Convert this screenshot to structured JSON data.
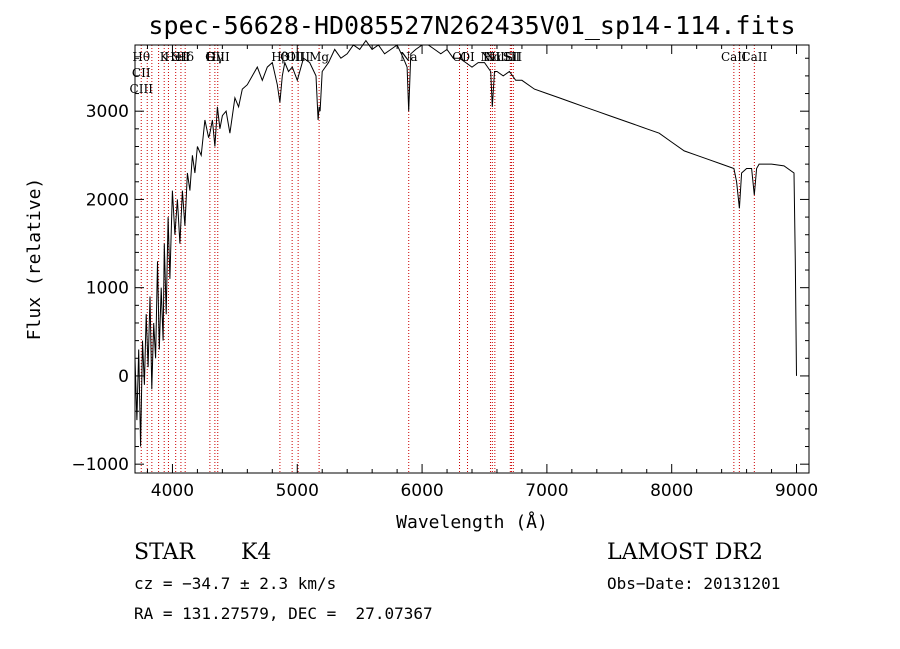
{
  "chart_data": {
    "type": "line",
    "title": "spec-56628-HD085527N262435V01_sp14-114.fits",
    "xlabel": "Wavelength (Å)",
    "ylabel": "Flux (relative)",
    "xlim": [
      3700,
      9100
    ],
    "ylim": [
      -1100,
      3750
    ],
    "xticks": [
      4000,
      5000,
      6000,
      7000,
      8000,
      9000
    ],
    "yticks": [
      -1000,
      0,
      1000,
      2000,
      3000
    ],
    "xtick_labels": [
      "4000",
      "5000",
      "6000",
      "7000",
      "8000",
      "9000"
    ],
    "ytick_labels": [
      "−1000",
      "0",
      "1000",
      "2000",
      "3000"
    ],
    "grid": false,
    "series": [
      {
        "x": [
          3700,
          3715,
          3730,
          3745,
          3760,
          3775,
          3790,
          3805,
          3820,
          3835,
          3850,
          3865,
          3880,
          3895,
          3910,
          3925,
          3935,
          3950,
          3965,
          3980,
          4000,
          4020,
          4040,
          4060,
          4080,
          4100,
          4120,
          4140,
          4160,
          4180,
          4200,
          4230,
          4260,
          4290,
          4300,
          4320,
          4340,
          4360,
          4380,
          4400,
          4430,
          4460,
          4500,
          4530,
          4560,
          4600,
          4640,
          4680,
          4720,
          4760,
          4800,
          4840,
          4861,
          4880,
          4900,
          4930,
          4960,
          5000,
          5050,
          5100,
          5150,
          5167,
          5175,
          5183,
          5200,
          5250,
          5300,
          5350,
          5400,
          5450,
          5500,
          5550,
          5600,
          5650,
          5700,
          5750,
          5800,
          5850,
          5880,
          5893,
          5910,
          5950,
          6000,
          6050,
          6100,
          6150,
          6200,
          6250,
          6300,
          6350,
          6400,
          6450,
          6500,
          6550,
          6563,
          6580,
          6600,
          6650,
          6700,
          6750,
          6800,
          6900,
          7000,
          7100,
          7200,
          7300,
          7400,
          7500,
          7600,
          7700,
          7800,
          7900,
          8000,
          8100,
          8200,
          8300,
          8400,
          8498,
          8520,
          8542,
          8560,
          8600,
          8640,
          8662,
          8680,
          8700,
          8800,
          8900,
          8980,
          8990,
          9000
        ],
        "y": [
          200,
          -500,
          300,
          -800,
          400,
          -100,
          700,
          100,
          900,
          -150,
          600,
          200,
          1300,
          300,
          1000,
          400,
          1500,
          700,
          1800,
          1100,
          2100,
          1600,
          2000,
          1500,
          2100,
          1700,
          2300,
          2100,
          2500,
          2300,
          2600,
          2500,
          2900,
          2700,
          2750,
          2900,
          2600,
          3050,
          2800,
          2950,
          3000,
          2750,
          3150,
          3050,
          3250,
          3300,
          3400,
          3500,
          3350,
          3500,
          3550,
          3300,
          3100,
          3400,
          3550,
          3450,
          3500,
          3350,
          3600,
          3550,
          3400,
          2900,
          3050,
          3000,
          3450,
          3550,
          3700,
          3600,
          3650,
          3750,
          3700,
          3800,
          3700,
          3750,
          3650,
          3700,
          3750,
          3600,
          3500,
          3000,
          3650,
          3700,
          3750,
          3750,
          3700,
          3650,
          3700,
          3600,
          3600,
          3550,
          3500,
          3550,
          3550,
          3450,
          3050,
          3450,
          3450,
          3400,
          3450,
          3350,
          3350,
          3250,
          3200,
          3150,
          3100,
          3050,
          3000,
          2950,
          2900,
          2850,
          2800,
          2750,
          2650,
          2550,
          2500,
          2450,
          2400,
          2350,
          2200,
          1900,
          2300,
          2350,
          2350,
          2050,
          2350,
          2400,
          2400,
          2380,
          2300,
          1300,
          0
        ]
      }
    ],
    "lines": [
      {
        "x": 3750,
        "labels": [
          "Hθ",
          "CII",
          "CIII"
        ]
      },
      {
        "x": 3798,
        "labels": []
      },
      {
        "x": 3835,
        "labels": []
      },
      {
        "x": 3889,
        "labels": []
      },
      {
        "x": 3934,
        "labels": [
          "K"
        ]
      },
      {
        "x": 3968,
        "labels": []
      },
      {
        "x": 4026,
        "labels": [
          "HeI"
        ]
      },
      {
        "x": 4068,
        "labels": [
          "SII"
        ]
      },
      {
        "x": 4102,
        "labels": [
          "Hδ"
        ]
      },
      {
        "x": 4300,
        "labels": [
          "G"
        ]
      },
      {
        "x": 4340,
        "labels": [
          "Hγ"
        ]
      },
      {
        "x": 4363,
        "labels": [
          "OIII"
        ]
      },
      {
        "x": 4861,
        "labels": [
          "Hβ"
        ]
      },
      {
        "x": 4959,
        "labels": [
          "OIII"
        ]
      },
      {
        "x": 5007,
        "labels": [
          "OIII"
        ]
      },
      {
        "x": 5175,
        "labels": [
          "Mg"
        ]
      },
      {
        "x": 5893,
        "labels": [
          "Na"
        ]
      },
      {
        "x": 6300,
        "labels": [
          "OI"
        ]
      },
      {
        "x": 6364,
        "labels": [
          "OI"
        ]
      },
      {
        "x": 6548,
        "labels": [
          "NII"
        ]
      },
      {
        "x": 6563,
        "labels": [
          "Hα"
        ]
      },
      {
        "x": 6583,
        "labels": [
          "NII"
        ]
      },
      {
        "x": 6707,
        "labels": [
          "Li"
        ]
      },
      {
        "x": 6716,
        "labels": [
          "SII"
        ]
      },
      {
        "x": 6731,
        "labels": [
          "SII"
        ]
      },
      {
        "x": 8498,
        "labels": [
          "CaII"
        ]
      },
      {
        "x": 8542,
        "labels": []
      },
      {
        "x": 8662,
        "labels": [
          "CaII"
        ]
      }
    ]
  },
  "info": {
    "object_class": "STAR",
    "subclass": "K4",
    "survey": "LAMOST DR2",
    "cz": "cz = −34.7 ± 2.3 km/s",
    "obs_date": "Obs−Date: 20131201",
    "radec": "RA = 131.27579, DEC =  27.07367"
  },
  "colors": {
    "spectrum": "#000000",
    "line_markers": "#cc0000",
    "axes": "#000000",
    "background": "#ffffff"
  }
}
